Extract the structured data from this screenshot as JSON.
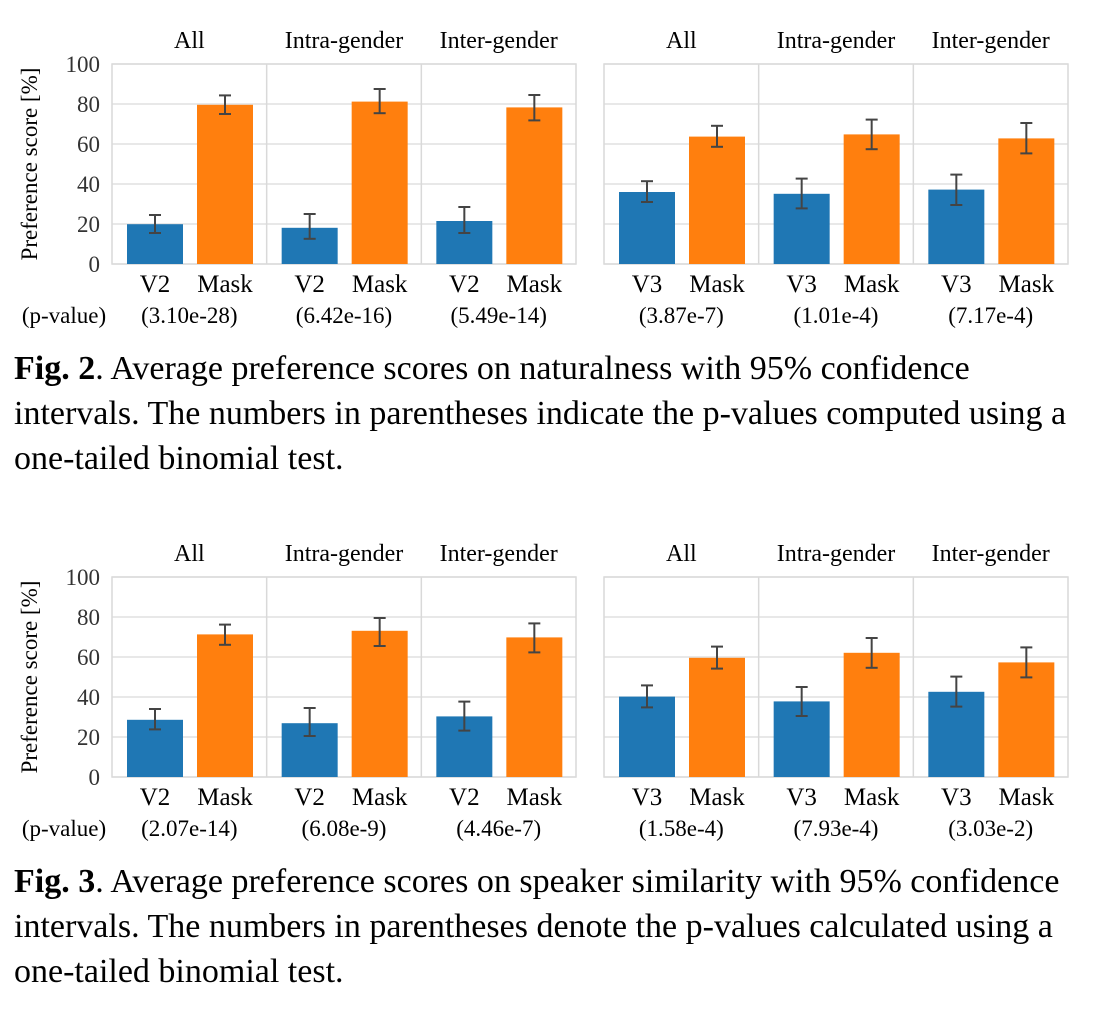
{
  "colors": {
    "baseline": "#1f77b4",
    "mask": "#ff7f0e",
    "grid": "#d9d9d9",
    "errorbar": "#444444"
  },
  "figures": [
    {
      "caption_label": "Fig. 2",
      "caption_text": ".  Average preference scores on naturalness with 95% confidence intervals. The numbers in parentheses indicate the p-values computed using a one-tailed binomial test.",
      "pvalue_label": "(p-value)"
    },
    {
      "caption_label": "Fig. 3",
      "caption_text": ".  Average preference scores on speaker similarity with 95% confidence intervals. The numbers in parentheses denote the p-values calculated using a one-tailed binomial test.",
      "pvalue_label": "(p-value)"
    }
  ],
  "chart_data": [
    {
      "type": "bar",
      "title": "",
      "ylabel": "Preference score [%]",
      "ylim": [
        0,
        100
      ],
      "yticks": [
        0,
        20,
        40,
        60,
        80,
        100
      ],
      "grid": true,
      "panels": [
        {
          "title": "All",
          "categories": [
            "V2",
            "Mask"
          ],
          "values": [
            19.9,
            79.6
          ],
          "ci_low": [
            15.5,
            75.0
          ],
          "ci_high": [
            24.5,
            84.3
          ],
          "pvalue": "(3.10e-28)"
        },
        {
          "title": "Intra-gender",
          "categories": [
            "V2",
            "Mask"
          ],
          "values": [
            18.1,
            81.2
          ],
          "ci_low": [
            12.6,
            75.4
          ],
          "ci_high": [
            25.0,
            87.5
          ],
          "pvalue": "(6.42e-16)"
        },
        {
          "title": "Inter-gender",
          "categories": [
            "V2",
            "Mask"
          ],
          "values": [
            21.5,
            78.3
          ],
          "ci_low": [
            15.5,
            71.8
          ],
          "ci_high": [
            28.5,
            84.5
          ],
          "pvalue": "(5.49e-14)"
        },
        {
          "title": "All",
          "categories": [
            "V3",
            "Mask"
          ],
          "values": [
            36.0,
            63.7
          ],
          "ci_low": [
            31.0,
            58.6
          ],
          "ci_high": [
            41.4,
            69.1
          ],
          "pvalue": "(3.87e-7)"
        },
        {
          "title": "Intra-gender",
          "categories": [
            "V3",
            "Mask"
          ],
          "values": [
            35.1,
            64.8
          ],
          "ci_low": [
            27.8,
            57.4
          ],
          "ci_high": [
            42.7,
            72.2
          ],
          "pvalue": "(1.01e-4)"
        },
        {
          "title": "Inter-gender",
          "categories": [
            "V3",
            "Mask"
          ],
          "values": [
            37.2,
            62.8
          ],
          "ci_low": [
            29.5,
            55.3
          ],
          "ci_high": [
            44.7,
            70.5
          ],
          "pvalue": "(7.17e-4)"
        }
      ]
    },
    {
      "type": "bar",
      "title": "",
      "ylabel": "Preference score [%]",
      "ylim": [
        0,
        100
      ],
      "yticks": [
        0,
        20,
        40,
        60,
        80,
        100
      ],
      "grid": true,
      "panels": [
        {
          "title": "All",
          "categories": [
            "V2",
            "Mask"
          ],
          "values": [
            28.6,
            71.3
          ],
          "ci_low": [
            23.8,
            66.1
          ],
          "ci_high": [
            34.0,
            76.2
          ],
          "pvalue": "(2.07e-14)"
        },
        {
          "title": "Intra-gender",
          "categories": [
            "V2",
            "Mask"
          ],
          "values": [
            26.9,
            73.1
          ],
          "ci_low": [
            20.5,
            65.5
          ],
          "ci_high": [
            34.5,
            79.5
          ],
          "pvalue": "(6.08e-9)"
        },
        {
          "title": "Inter-gender",
          "categories": [
            "V2",
            "Mask"
          ],
          "values": [
            30.3,
            69.8
          ],
          "ci_low": [
            23.2,
            62.3
          ],
          "ci_high": [
            37.7,
            76.8
          ],
          "pvalue": "(4.46e-7)"
        },
        {
          "title": "All",
          "categories": [
            "V3",
            "Mask"
          ],
          "values": [
            40.2,
            59.6
          ],
          "ci_low": [
            34.8,
            54.2
          ],
          "ci_high": [
            45.8,
            65.2
          ],
          "pvalue": "(1.58e-4)"
        },
        {
          "title": "Intra-gender",
          "categories": [
            "V3",
            "Mask"
          ],
          "values": [
            37.8,
            62.1
          ],
          "ci_low": [
            30.5,
            54.6
          ],
          "ci_high": [
            45.0,
            69.5
          ],
          "pvalue": "(7.93e-4)"
        },
        {
          "title": "Inter-gender",
          "categories": [
            "V3",
            "Mask"
          ],
          "values": [
            42.6,
            57.3
          ],
          "ci_low": [
            35.2,
            49.8
          ],
          "ci_high": [
            50.2,
            64.8
          ],
          "pvalue": "(3.03e-2)"
        }
      ]
    }
  ]
}
